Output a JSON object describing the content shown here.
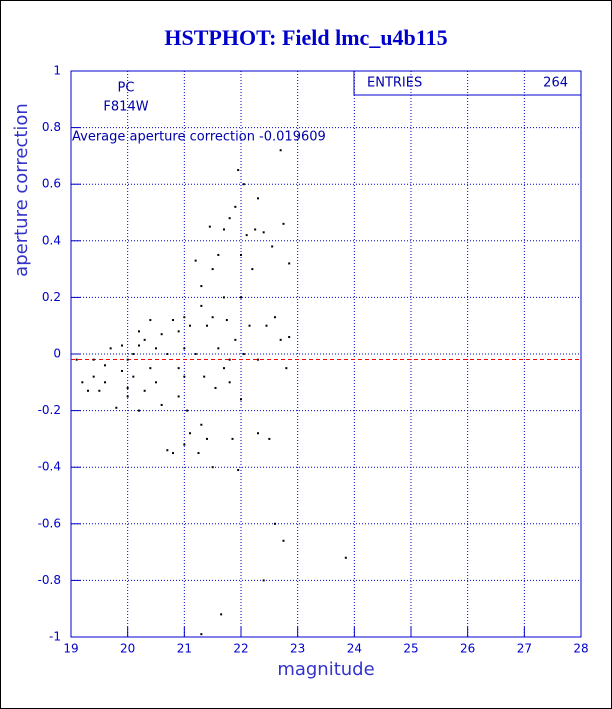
{
  "chart_data": {
    "type": "scatter",
    "title": "HSTPHOT: Field lmc_u4b115",
    "x_label": "magnitude",
    "y_label": "aperture correction",
    "annotations": [
      "PC",
      "F814W",
      "Average aperture correction -0.019609"
    ],
    "stats": {
      "label": "ENTRIES",
      "value": 264
    },
    "reference_line": {
      "value": -0.019609,
      "color": "#ff0000"
    },
    "color": "#000000",
    "grid": true,
    "xlim": [
      19,
      28
    ],
    "xticks": [
      19,
      20,
      21,
      22,
      23,
      24,
      25,
      26,
      27,
      28
    ],
    "ylim": [
      -1,
      1
    ],
    "yticks": [
      -1,
      -0.8,
      -0.6,
      -0.4,
      -0.2,
      0,
      0.2,
      0.4,
      0.6,
      0.8,
      1
    ],
    "x": [
      19.1,
      19.2,
      19.3,
      19.4,
      19.5,
      19.6,
      19.7,
      19.6,
      19.8,
      19.9,
      19.9,
      20.0,
      20.0,
      20.1,
      20.1,
      20.2,
      20.2,
      20.3,
      20.3,
      20.4,
      20.4,
      20.5,
      20.5,
      20.6,
      20.6,
      20.7,
      20.8,
      20.8,
      20.9,
      20.9,
      20.9,
      21.0,
      21.0,
      21.0,
      21.05,
      21.1,
      21.1,
      21.2,
      21.2,
      21.25,
      21.3,
      21.3,
      21.3,
      21.35,
      21.4,
      21.4,
      21.45,
      21.5,
      21.5,
      21.55,
      21.6,
      21.6,
      21.65,
      21.7,
      21.7,
      21.7,
      21.75,
      21.8,
      21.8,
      21.85,
      21.9,
      21.9,
      21.95,
      21.95,
      22.0,
      22.0,
      22.05,
      22.05,
      22.1,
      22.15,
      22.2,
      22.25,
      22.3,
      22.3,
      22.4,
      22.4,
      22.45,
      22.5,
      22.55,
      22.6,
      22.6,
      22.7,
      22.7,
      22.75,
      22.75,
      22.85,
      22.85,
      23.85,
      21.3,
      20.2,
      20.7,
      19.4,
      21.8,
      21.5,
      22.0,
      20.0,
      21.0,
      22.3,
      22.8
    ],
    "values": [
      -0.02,
      -0.1,
      -0.13,
      -0.08,
      -0.13,
      -0.04,
      0.02,
      -0.1,
      -0.19,
      -0.06,
      0.03,
      -0.12,
      -0.02,
      -0.08,
      0.0,
      -0.2,
      0.03,
      -0.13,
      0.05,
      0.12,
      -0.05,
      0.02,
      -0.1,
      0.07,
      -0.18,
      -0.34,
      0.12,
      -0.35,
      -0.05,
      0.08,
      -0.15,
      0.13,
      0.02,
      -0.08,
      -0.2,
      0.1,
      -0.28,
      0.33,
      0.0,
      -0.35,
      0.24,
      0.17,
      -0.25,
      -0.08,
      0.1,
      -0.3,
      0.45,
      0.13,
      -0.4,
      -0.12,
      0.35,
      0.02,
      -0.92,
      0.44,
      0.2,
      -0.05,
      0.12,
      0.48,
      -0.02,
      -0.3,
      0.05,
      0.52,
      -0.41,
      0.65,
      0.2,
      -0.16,
      0.6,
      0.0,
      0.42,
      0.1,
      0.3,
      0.44,
      0.55,
      -0.28,
      0.43,
      -0.8,
      0.1,
      -0.3,
      0.38,
      0.13,
      -0.6,
      0.72,
      0.05,
      0.46,
      -0.66,
      0.32,
      0.06,
      -0.72,
      -0.99,
      0.08,
      0.0,
      -0.02,
      -0.1,
      0.3,
      0.35,
      -0.15,
      -0.32,
      -0.02,
      -0.05
    ]
  }
}
